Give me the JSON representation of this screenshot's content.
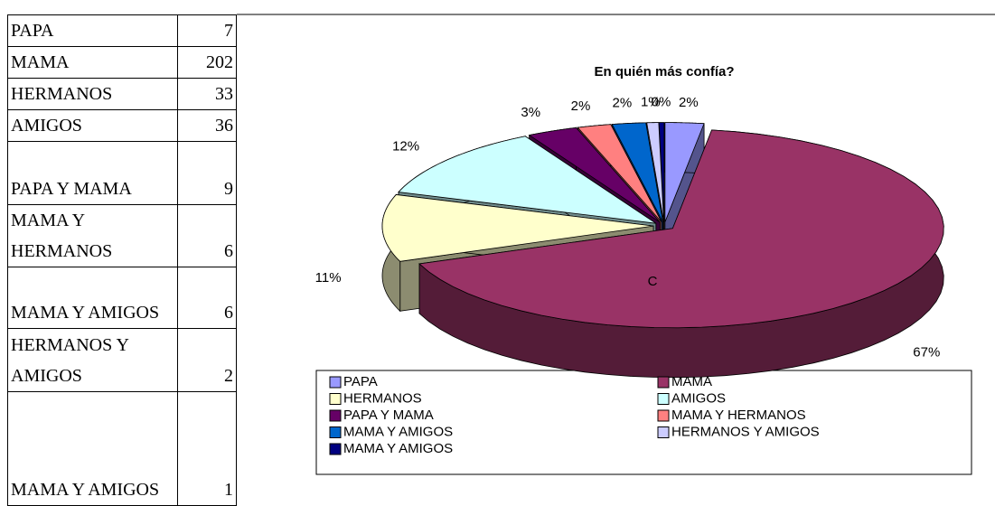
{
  "table": {
    "rows": [
      [
        "PAPA",
        7
      ],
      [
        "MAMA",
        202
      ],
      [
        "HERMANOS",
        33
      ],
      [
        "AMIGOS",
        36
      ],
      [
        "PAPA Y MAMA",
        9
      ],
      [
        "MAMA Y HERMANOS",
        6
      ],
      [
        "MAMA Y AMIGOS",
        6
      ],
      [
        "HERMANOS Y AMIGOS",
        2
      ],
      [
        "MAMA Y AMIGOS",
        1
      ]
    ]
  },
  "chart_data": {
    "type": "pie",
    "title": "En quién más confía?",
    "categories": [
      "PAPA",
      "MAMA",
      "HERMANOS",
      "AMIGOS",
      "PAPA Y MAMA",
      "MAMA Y HERMANOS",
      "MAMA Y AMIGOS",
      "HERMANOS Y AMIGOS",
      "MAMA Y AMIGOS"
    ],
    "values": [
      2.3,
      66.9,
      10.9,
      11.9,
      3.0,
      2.0,
      2.0,
      0.7,
      0.3
    ],
    "value_labels": [
      "2%",
      "67%",
      "11%",
      "12%",
      "3%",
      "2%",
      "2%",
      "1%",
      "0%"
    ],
    "colors": [
      "#9999ff",
      "#993366",
      "#ffffcc",
      "#ccffff",
      "#660066",
      "#ff8080",
      "#0066cc",
      "#ccccff",
      "#000080"
    ],
    "annotation": "C"
  }
}
